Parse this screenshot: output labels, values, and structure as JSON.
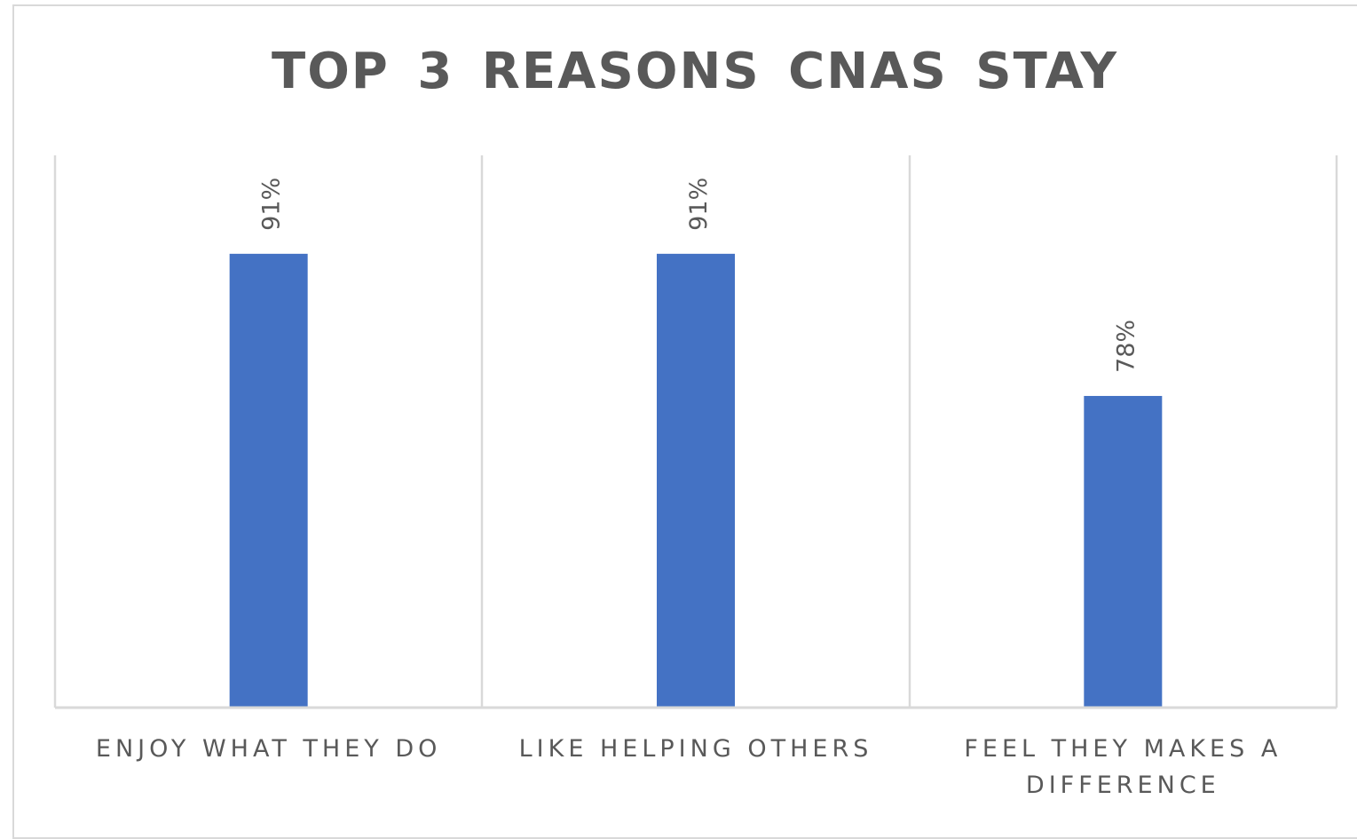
{
  "chart_data": {
    "type": "bar",
    "title": "TOP 3 REASONS CNAS STAY",
    "categories": [
      [
        "ENJOY WHAT THEY DO"
      ],
      [
        "LIKE HELPING OTHERS"
      ],
      [
        "FEEL THEY MAKES A",
        "DIFFERENCE"
      ]
    ],
    "values": [
      91,
      91,
      78
    ],
    "value_labels": [
      "91%",
      "91%",
      "78%"
    ],
    "unit": "%",
    "xlabel": "",
    "ylabel": "",
    "ylim": [
      49.5,
      100
    ],
    "grid": "vertical category separators",
    "legend": "none",
    "bar_color": "#4472C4",
    "grid_color": "#d9d9d9",
    "label_color": "#595959"
  }
}
